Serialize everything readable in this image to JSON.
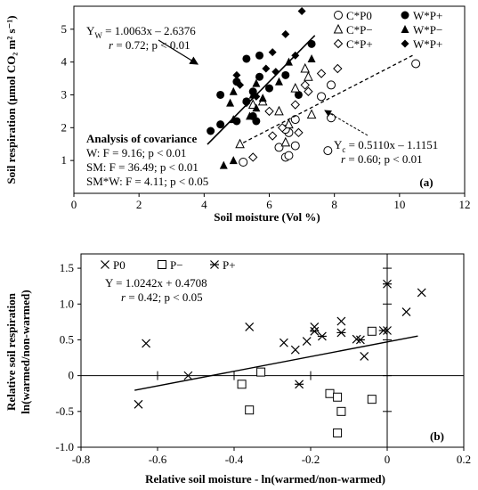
{
  "chart_data": [
    {
      "type": "scatter",
      "panel_label": "(a)",
      "xlabel": "Soil moisture (Vol %)",
      "ylabel": "Soil respiration (μmol CO₂ m² s⁻¹)",
      "xlim": [
        0,
        12
      ],
      "ylim": [
        0,
        5.7
      ],
      "xticks": [
        0,
        2,
        4,
        6,
        8,
        10,
        12
      ],
      "yticks": [
        1,
        2,
        3,
        4,
        5
      ],
      "grid": false,
      "legend_position": "top-right",
      "legend": [
        "C*P0",
        "W*P+",
        "C*P−",
        "W*P−",
        "C*P+",
        "W*P+"
      ],
      "series": [
        {
          "name": "C*P0",
          "marker": "open-circle",
          "points": [
            [
              5.2,
              0.95
            ],
            [
              6.5,
              1.1
            ],
            [
              6.6,
              1.15
            ],
            [
              6.3,
              1.4
            ],
            [
              6.8,
              1.45
            ],
            [
              6.6,
              1.85
            ],
            [
              6.5,
              1.95
            ],
            [
              6.8,
              2.25
            ],
            [
              7.9,
              2.3
            ],
            [
              7.6,
              2.95
            ],
            [
              7.9,
              3.3
            ],
            [
              7.8,
              1.3
            ],
            [
              10.5,
              3.95
            ]
          ]
        },
        {
          "name": "W*P+",
          "marker": "filled-circle",
          "points": [
            [
              4.5,
              3.0
            ],
            [
              4.2,
              1.9
            ],
            [
              4.5,
              2.1
            ],
            [
              5.0,
              2.2
            ],
            [
              5.6,
              2.2
            ],
            [
              5.5,
              2.35
            ],
            [
              5.0,
              3.4
            ],
            [
              5.5,
              3.1
            ],
            [
              5.3,
              2.8
            ],
            [
              5.7,
              3.55
            ],
            [
              5.3,
              4.1
            ],
            [
              5.7,
              4.2
            ],
            [
              6.0,
              3.2
            ],
            [
              6.5,
              3.6
            ],
            [
              6.9,
              3.0
            ],
            [
              7.3,
              4.55
            ]
          ]
        },
        {
          "name": "C*P−",
          "marker": "open-triangle",
          "points": [
            [
              5.1,
              1.5
            ],
            [
              5.5,
              2.7
            ],
            [
              5.8,
              2.8
            ],
            [
              6.3,
              2.5
            ],
            [
              6.5,
              1.55
            ],
            [
              6.6,
              2.1
            ],
            [
              6.8,
              3.2
            ],
            [
              7.1,
              3.8
            ],
            [
              7.2,
              3.55
            ],
            [
              7.3,
              2.4
            ]
          ]
        },
        {
          "name": "W*P−",
          "marker": "filled-triangle",
          "points": [
            [
              4.8,
              2.75
            ],
            [
              4.9,
              3.1
            ],
            [
              4.6,
              0.85
            ],
            [
              4.9,
              1.0
            ],
            [
              4.9,
              2.25
            ],
            [
              5.5,
              3.0
            ],
            [
              5.4,
              2.35
            ],
            [
              5.6,
              2.6
            ],
            [
              5.6,
              3.35
            ],
            [
              5.8,
              2.9
            ],
            [
              6.3,
              3.4
            ],
            [
              6.6,
              4.0
            ],
            [
              7.3,
              4.1
            ]
          ]
        },
        {
          "name": "C*P+",
          "marker": "open-diamond",
          "points": [
            [
              5.5,
              1.1
            ],
            [
              6.0,
              2.5
            ],
            [
              6.1,
              1.75
            ],
            [
              6.4,
              2.0
            ],
            [
              6.8,
              2.7
            ],
            [
              6.9,
              1.85
            ],
            [
              7.1,
              3.3
            ],
            [
              7.2,
              3.1
            ],
            [
              7.6,
              3.65
            ],
            [
              8.1,
              3.8
            ]
          ]
        },
        {
          "name": "W*P+",
          "marker": "filled-diamond",
          "points": [
            [
              5.0,
              3.6
            ],
            [
              5.1,
              3.3
            ],
            [
              5.3,
              2.75
            ],
            [
              5.6,
              2.95
            ],
            [
              5.9,
              3.8
            ],
            [
              6.1,
              4.3
            ],
            [
              6.2,
              3.7
            ],
            [
              6.5,
              4.85
            ],
            [
              6.8,
              4.2
            ],
            [
              7.0,
              5.55
            ]
          ]
        }
      ],
      "fits": [
        {
          "kind": "solid",
          "x": [
            4.1,
            7.4
          ],
          "y": [
            1.49,
            4.81
          ]
        },
        {
          "kind": "dashed",
          "x": [
            5.2,
            10.4
          ],
          "y": [
            1.54,
            4.2
          ]
        }
      ],
      "annotations": {
        "eq_w_lhs": "Y",
        "eq_w_sub": "W",
        "eq_w_rhs": " = 1.0063x – 2.6376",
        "stats_w_r": "r",
        "stats_w_rest": " = 0.72; p < 0.01",
        "eq_c_lhs": "Y",
        "eq_c_sub": "c",
        "eq_c_rhs": " = 0.5110x – 1.1151",
        "stats_c_r": "r",
        "stats_c_rest": " = 0.60; p < 0.01",
        "ancova_title": "Analysis of covariance",
        "ancova_w": "W: F = 9.16; p < 0.01",
        "ancova_sm": "SM: F = 36.49; p < 0.01",
        "ancova_smw": "SM*W: F = 4.11; p < 0.05"
      }
    },
    {
      "type": "scatter",
      "panel_label": "(b)",
      "xlabel": "Relative soil moisture - ln(warmed/non-warmed)",
      "ylabel_line1": "Relative soil respiration",
      "ylabel_line2": "ln(warmed/non-warmed)",
      "xlim": [
        -0.8,
        0.2
      ],
      "ylim": [
        -1.0,
        1.7
      ],
      "xticks": [
        -0.8,
        -0.6,
        -0.4,
        -0.2,
        0,
        0.2
      ],
      "xtick_labels": [
        "-0.8",
        "-0.6",
        "-0.4",
        "-0.2",
        "0",
        "0.2"
      ],
      "yticks": [
        -1.0,
        -0.5,
        0,
        0.5,
        1.0,
        1.5
      ],
      "ytick_labels": [
        "-1.0",
        "-0.5",
        "0",
        "0.5",
        "1.0",
        "1.5"
      ],
      "grid": false,
      "legend_position": "top-left",
      "legend": [
        "P0",
        "P−",
        "P+"
      ],
      "series": [
        {
          "name": "P0",
          "marker": "x",
          "points": [
            [
              -0.65,
              -0.4
            ],
            [
              -0.63,
              0.45
            ],
            [
              -0.52,
              0.0
            ],
            [
              -0.36,
              0.68
            ],
            [
              -0.27,
              0.46
            ],
            [
              -0.24,
              0.36
            ],
            [
              -0.21,
              0.48
            ],
            [
              -0.19,
              0.68
            ],
            [
              -0.12,
              0.76
            ],
            [
              -0.08,
              0.51
            ],
            [
              -0.06,
              0.27
            ],
            [
              0.0,
              0.63
            ],
            [
              0.05,
              0.89
            ],
            [
              0.09,
              1.16
            ]
          ]
        },
        {
          "name": "P−",
          "marker": "open-square",
          "points": [
            [
              -0.38,
              -0.12
            ],
            [
              -0.36,
              -0.48
            ],
            [
              -0.33,
              0.05
            ],
            [
              -0.15,
              -0.25
            ],
            [
              -0.13,
              -0.3
            ],
            [
              -0.12,
              -0.5
            ],
            [
              -0.13,
              -0.8
            ],
            [
              -0.04,
              -0.33
            ],
            [
              -0.04,
              0.62
            ]
          ]
        },
        {
          "name": "P+",
          "marker": "asterisk",
          "points": [
            [
              -0.23,
              -0.12
            ],
            [
              -0.19,
              0.62
            ],
            [
              -0.17,
              0.55
            ],
            [
              -0.07,
              0.5
            ],
            [
              0.0,
              1.28
            ],
            [
              -0.01,
              0.63
            ],
            [
              -0.12,
              0.6
            ]
          ]
        }
      ],
      "fits": [
        {
          "kind": "solid",
          "x": [
            -0.66,
            0.08
          ],
          "y": [
            -0.205,
            0.553
          ]
        }
      ],
      "annotations": {
        "eq": "Y = 1.0242x + 0.4708",
        "stats_r": "r",
        "stats_rest": " = 0.42; p < 0.05"
      }
    }
  ]
}
